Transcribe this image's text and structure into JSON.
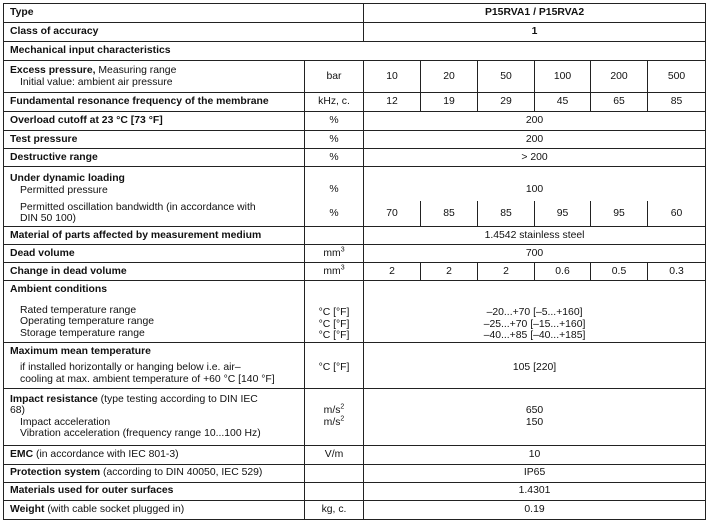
{
  "type": {
    "label": "Type",
    "value": "P15RVA1 / P15RVA2"
  },
  "accuracy": {
    "label": "Class of accuracy",
    "value": "1"
  },
  "mechanical": {
    "label": "Mechanical input characteristics"
  },
  "excess": {
    "label": "Excess pressure,",
    "label_rest": " Measuring range",
    "sub": "Initial value: ambient air pressure",
    "unit": "bar",
    "values": [
      "10",
      "20",
      "50",
      "100",
      "200",
      "500"
    ]
  },
  "resonance": {
    "label": "Fundamental resonance frequency of the membrane",
    "unit": "kHz, c.",
    "values": [
      "12",
      "19",
      "29",
      "45",
      "65",
      "85"
    ]
  },
  "overload": {
    "label": "Overload cutoff at 23 °C [73 °F]",
    "unit": "%",
    "value": "200"
  },
  "test": {
    "label": "Test pressure",
    "unit": "%",
    "value": "200"
  },
  "destructive": {
    "label": "Destructive range",
    "unit": "%",
    "value": "> 200"
  },
  "dynamic": {
    "label": "Under dynamic loading",
    "pressure_label": "Permitted pressure",
    "pressure_unit": "%",
    "pressure_value": "100",
    "bandwidth_label1": "Permitted oscillation bandwidth (in accordance with",
    "bandwidth_label2": "DIN 50 100)",
    "bandwidth_unit": "%",
    "bandwidth_values": [
      "70",
      "85",
      "85",
      "95",
      "95",
      "60"
    ]
  },
  "material": {
    "label": "Material of parts affected by measurement medium",
    "value": "1.4542 stainless steel"
  },
  "dead": {
    "label": "Dead volume",
    "unit": "mm",
    "unit_sup": "3",
    "value": "700"
  },
  "change": {
    "label": "Change in dead volume",
    "unit": "mm",
    "unit_sup": "3",
    "values": [
      "2",
      "2",
      "2",
      "0.6",
      "0.5",
      "0.3"
    ]
  },
  "ambient": {
    "label": "Ambient conditions",
    "rows": [
      {
        "label": "Rated temperature range",
        "unit": "°C [°F]",
        "value": "–20...+70 [–5...+160]"
      },
      {
        "label": "Operating temperature range",
        "unit": "°C [°F]",
        "value": "–25...+70 [–15...+160]"
      },
      {
        "label": "Storage temperature range",
        "unit": "°C [°F]",
        "value": "–40...+85 [–40...+185]"
      }
    ]
  },
  "maxmean": {
    "label": "Maximum mean temperature",
    "sub1": "if installed horizontally or hanging below i.e. air–",
    "sub2": "cooling at max. ambient temperature of +60 °C [140 °F]",
    "unit": "°C [°F]",
    "value": "105 [220]"
  },
  "impact": {
    "label": "Impact resistance",
    "label_rest": " (type testing according to DIN IEC",
    "label2": "68)",
    "sub1": "Impact acceleration",
    "sub2": "Vibration acceleration (frequency range 10...100 Hz)",
    "unit": "m/s",
    "unit_sup": "2",
    "value1": "650",
    "value2": "150"
  },
  "emc": {
    "label": "EMC",
    "label_rest": " (in accordance with IEC 801-3)",
    "unit": "V/m",
    "value": "10"
  },
  "protection": {
    "label": "Protection system",
    "label_rest": " (according to DIN 40050, IEC 529)",
    "value": "IP65"
  },
  "outer": {
    "label": "Materials used for outer surfaces",
    "value": "1.4301"
  },
  "weight": {
    "label": "Weight",
    "label_rest": " (with cable socket plugged in)",
    "unit": "kg, c.",
    "value": "0.19"
  }
}
